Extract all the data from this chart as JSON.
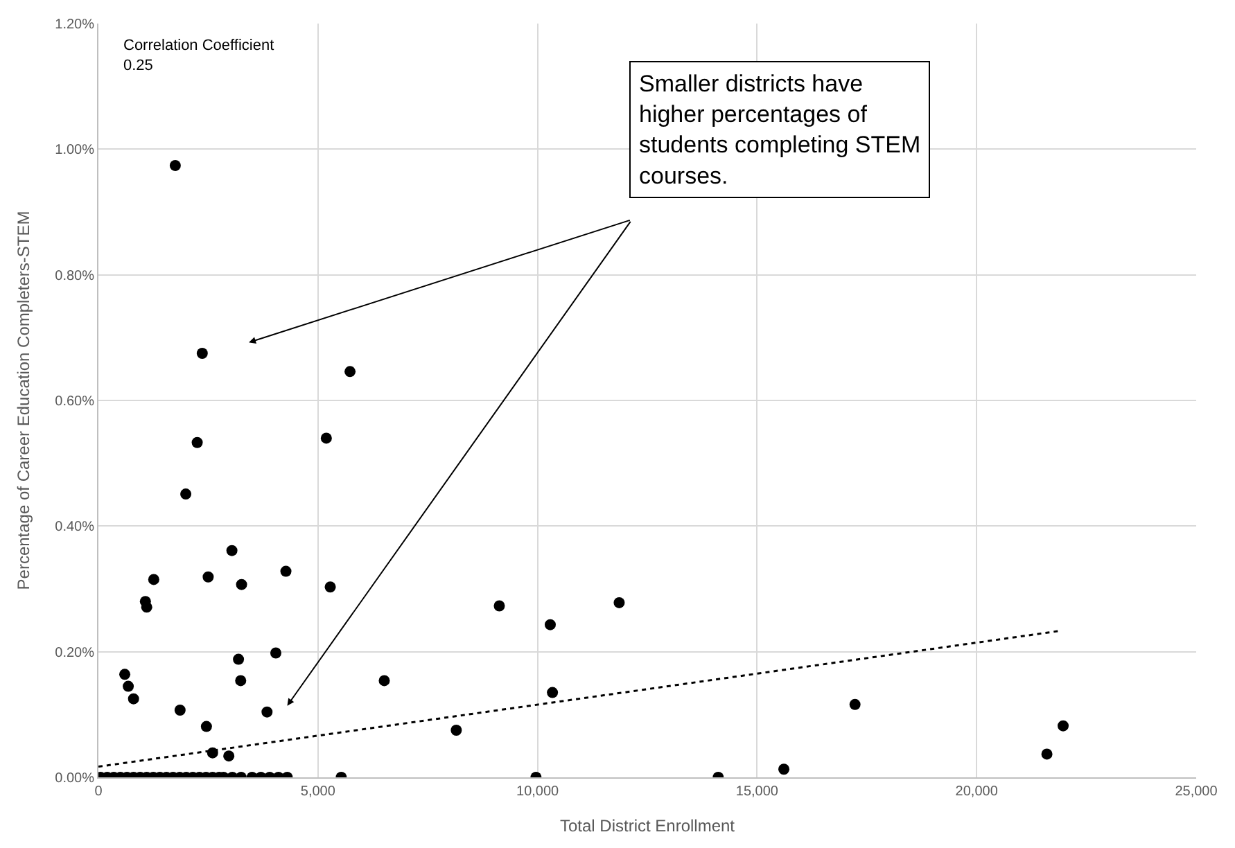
{
  "chart_data": {
    "type": "scatter",
    "xlabel": "Total District Enrollment",
    "ylabel": "Percentage of Career Education Completers-STEM",
    "xlim": [
      0,
      25000
    ],
    "xticks": [
      {
        "value": 0,
        "label": "0"
      },
      {
        "value": 5000,
        "label": "5,000"
      },
      {
        "value": 10000,
        "label": "10,000"
      },
      {
        "value": 15000,
        "label": "15,000"
      },
      {
        "value": 20000,
        "label": "20,000"
      },
      {
        "value": 25000,
        "label": "25,000"
      }
    ],
    "ylim": [
      0,
      1.2
    ],
    "yticks": [
      {
        "value": 0,
        "label": "0.00%"
      },
      {
        "value": 0.2,
        "label": "0.20%"
      },
      {
        "value": 0.4,
        "label": "0.40%"
      },
      {
        "value": 0.6,
        "label": "0.60%"
      },
      {
        "value": 0.8,
        "label": "0.80%"
      },
      {
        "value": 1.0,
        "label": "1.00%"
      },
      {
        "value": 1.2,
        "label": "1.20%"
      }
    ],
    "grid": true,
    "marker": "circle",
    "annotations": [
      "Correlation Coefficient\n0.25",
      "Smaller districts have\nhigher percentages of\nstudents completing STEM\ncourses."
    ],
    "series": [
      {
        "color": "#000000",
        "x": [
          1750,
          2365,
          5730,
          2250,
          5190,
          1990,
          3040,
          1260,
          2500,
          3260,
          4270,
          5280,
          1070,
          1100,
          3190,
          4040,
          600,
          680,
          3240,
          800,
          6510,
          1860,
          3840,
          2460,
          8150,
          2600,
          2970,
          5530,
          9130,
          10290,
          11860,
          10340,
          9965,
          14115,
          15610,
          17230,
          21600,
          21970,
          50,
          200,
          350,
          500,
          650,
          800,
          950,
          1100,
          1250,
          1400,
          1550,
          1700,
          1850,
          2000,
          2150,
          2300,
          2450,
          2600,
          2750,
          2850,
          3050,
          3250,
          3500,
          3700,
          3900,
          4100,
          4300
        ],
        "values": [
          0.974,
          0.675,
          0.646,
          0.533,
          0.54,
          0.451,
          0.361,
          0.315,
          0.319,
          0.307,
          0.328,
          0.303,
          0.28,
          0.271,
          0.188,
          0.198,
          0.164,
          0.145,
          0.154,
          0.125,
          0.154,
          0.107,
          0.104,
          0.081,
          0.075,
          0.039,
          0.034,
          0,
          0.273,
          0.243,
          0.278,
          0.135,
          0,
          0,
          0.013,
          0.116,
          0.037,
          0.082,
          0,
          0,
          0,
          0,
          0,
          0,
          0,
          0,
          0,
          0,
          0,
          0,
          0,
          0,
          0,
          0,
          0,
          0,
          0,
          0,
          0,
          0,
          0,
          0,
          0,
          0,
          0
        ]
      },
      {
        "type": "line",
        "color": "#000000",
        "line_style": "dotted",
        "marker": "none",
        "x": [
          0,
          21880
        ],
        "values": [
          0.017,
          0.233
        ]
      }
    ]
  }
}
